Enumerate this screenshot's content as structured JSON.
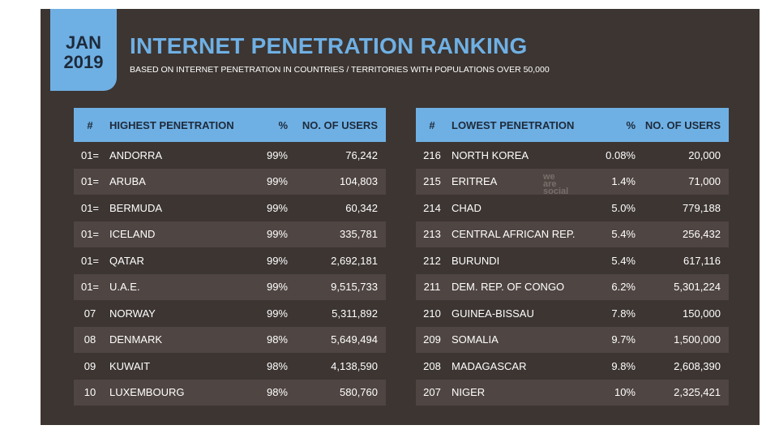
{
  "header": {
    "month": "JAN",
    "year": "2019",
    "title": "INTERNET PENETRATION RANKING",
    "subtitle": "BASED ON INTERNET PENETRATION IN COUNTRIES / TERRITORIES WITH POPULATIONS OVER 50,000"
  },
  "brand_logo": [
    "we",
    "are",
    "social"
  ],
  "colors": {
    "accent": "#6fb0e4",
    "background": "#3c3532",
    "row_alt": "#4f4542",
    "header_text": "#1e2a3a"
  },
  "highest": {
    "headers": [
      "#",
      "HIGHEST PENETRATION",
      "%",
      "NO. OF USERS"
    ],
    "rows": [
      [
        "01=",
        "ANDORRA",
        "99%",
        "76,242"
      ],
      [
        "01=",
        "ARUBA",
        "99%",
        "104,803"
      ],
      [
        "01=",
        "BERMUDA",
        "99%",
        "60,342"
      ],
      [
        "01=",
        "ICELAND",
        "99%",
        "335,781"
      ],
      [
        "01=",
        "QATAR",
        "99%",
        "2,692,181"
      ],
      [
        "01=",
        "U.A.E.",
        "99%",
        "9,515,733"
      ],
      [
        "07",
        "NORWAY",
        "99%",
        "5,311,892"
      ],
      [
        "08",
        "DENMARK",
        "98%",
        "5,649,494"
      ],
      [
        "09",
        "KUWAIT",
        "98%",
        "4,138,590"
      ],
      [
        "10",
        "LUXEMBOURG",
        "98%",
        "580,760"
      ]
    ]
  },
  "lowest": {
    "headers": [
      "#",
      "LOWEST PENETRATION",
      "%",
      "NO. OF USERS"
    ],
    "rows": [
      [
        "216",
        "NORTH KOREA",
        "0.08%",
        "20,000"
      ],
      [
        "215",
        "ERITREA",
        "1.4%",
        "71,000"
      ],
      [
        "214",
        "CHAD",
        "5.0%",
        "779,188"
      ],
      [
        "213",
        "CENTRAL AFRICAN REP.",
        "5.4%",
        "256,432"
      ],
      [
        "212",
        "BURUNDI",
        "5.4%",
        "617,116"
      ],
      [
        "211",
        "DEM. REP. OF CONGO",
        "6.2%",
        "5,301,224"
      ],
      [
        "210",
        "GUINEA-BISSAU",
        "7.8%",
        "150,000"
      ],
      [
        "209",
        "SOMALIA",
        "9.7%",
        "1,500,000"
      ],
      [
        "208",
        "MADAGASCAR",
        "9.8%",
        "2,608,390"
      ],
      [
        "207",
        "NIGER",
        "10%",
        "2,325,421"
      ]
    ]
  }
}
